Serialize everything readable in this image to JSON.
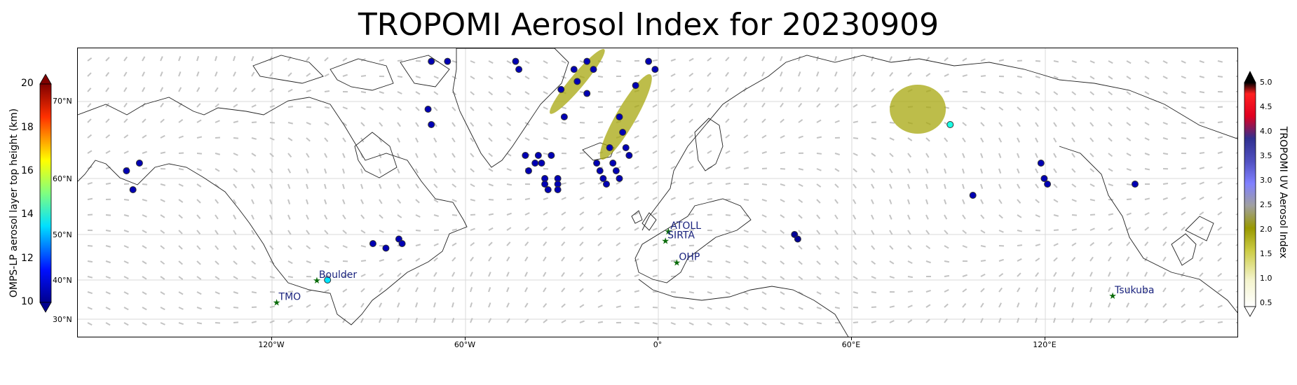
{
  "title": "TROPOMI Aerosol Index for 20230909",
  "left_colorbar": {
    "label": "OMPS-LP aerosol layer top height (km)",
    "ticks": [
      "20",
      "18",
      "16",
      "14",
      "12",
      "10"
    ],
    "range": [
      10,
      20
    ],
    "colormap": "jet"
  },
  "right_colorbar": {
    "label": "TROPOMI UV Aerosol Index",
    "ticks": [
      "5.0",
      "4.5",
      "4.0",
      "3.5",
      "3.0",
      "2.5",
      "2.0",
      "1.5",
      "1.0",
      "0.5"
    ],
    "range": [
      0.5,
      5.0
    ]
  },
  "lat_labels": [
    "70°N",
    "60°N",
    "50°N",
    "40°N",
    "30°N"
  ],
  "x_ticks": [
    "120°W",
    "60°W",
    "0°",
    "60°E",
    "120°E"
  ],
  "sites": [
    {
      "name": "ATOLL",
      "lon": 3.1,
      "lat": 50.6
    },
    {
      "name": "SIRTA",
      "lon": 2.2,
      "lat": 48.7
    },
    {
      "name": "OHP",
      "lon": 5.7,
      "lat": 43.9
    },
    {
      "name": "Boulder",
      "lon": -105.3,
      "lat": 40.0
    },
    {
      "name": "TMO",
      "lon": -117.7,
      "lat": 34.4
    },
    {
      "name": "Tsukuba",
      "lon": 140.1,
      "lat": 36.1
    }
  ],
  "omps_points": [
    {
      "lon": -164,
      "lat": 61,
      "h": 10.5
    },
    {
      "lon": -160,
      "lat": 62,
      "h": 10.5
    },
    {
      "lon": -162,
      "lat": 58,
      "h": 10.5
    },
    {
      "lon": -70,
      "lat": 80,
      "h": 10.5
    },
    {
      "lon": -65,
      "lat": 80,
      "h": 10.5
    },
    {
      "lon": -71,
      "lat": 69,
      "h": 10.5
    },
    {
      "lon": -70,
      "lat": 67,
      "h": 10.5
    },
    {
      "lon": -88,
      "lat": 48,
      "h": 10.5
    },
    {
      "lon": -84,
      "lat": 47,
      "h": 10.5
    },
    {
      "lon": -80,
      "lat": 49,
      "h": 10.5
    },
    {
      "lon": -79,
      "lat": 48,
      "h": 10.5
    },
    {
      "lon": -44,
      "lat": 80,
      "h": 10.5
    },
    {
      "lon": -43,
      "lat": 78,
      "h": 10.5
    },
    {
      "lon": -41,
      "lat": 63,
      "h": 10.5
    },
    {
      "lon": -40,
      "lat": 61,
      "h": 10.5
    },
    {
      "lon": -37,
      "lat": 63,
      "h": 10.5
    },
    {
      "lon": -38,
      "lat": 62,
      "h": 10.5
    },
    {
      "lon": -36,
      "lat": 62,
      "h": 10.5
    },
    {
      "lon": -35,
      "lat": 60,
      "h": 10.5
    },
    {
      "lon": -33,
      "lat": 63,
      "h": 10.5
    },
    {
      "lon": -35,
      "lat": 59,
      "h": 10.5
    },
    {
      "lon": -34,
      "lat": 58,
      "h": 10.5
    },
    {
      "lon": -31,
      "lat": 60,
      "h": 10.5
    },
    {
      "lon": -31,
      "lat": 59,
      "h": 10.5
    },
    {
      "lon": -31,
      "lat": 58,
      "h": 10.5
    },
    {
      "lon": -30,
      "lat": 73,
      "h": 10.5
    },
    {
      "lon": -29,
      "lat": 68,
      "h": 10.5
    },
    {
      "lon": -26,
      "lat": 78,
      "h": 10.5
    },
    {
      "lon": -25,
      "lat": 75,
      "h": 10.5
    },
    {
      "lon": -22,
      "lat": 72,
      "h": 10.5
    },
    {
      "lon": -22,
      "lat": 80,
      "h": 10.5
    },
    {
      "lon": -20,
      "lat": 78,
      "h": 10.5
    },
    {
      "lon": -19,
      "lat": 62,
      "h": 10.5
    },
    {
      "lon": -18,
      "lat": 61,
      "h": 10.5
    },
    {
      "lon": -17,
      "lat": 60,
      "h": 10.5
    },
    {
      "lon": -16,
      "lat": 59,
      "h": 10.5
    },
    {
      "lon": -15,
      "lat": 64,
      "h": 10.5
    },
    {
      "lon": -14,
      "lat": 62,
      "h": 10.5
    },
    {
      "lon": -13,
      "lat": 61,
      "h": 10.5
    },
    {
      "lon": -12,
      "lat": 60,
      "h": 10.5
    },
    {
      "lon": -12,
      "lat": 68,
      "h": 10.5
    },
    {
      "lon": -11,
      "lat": 66,
      "h": 10.5
    },
    {
      "lon": -10,
      "lat": 64,
      "h": 10.5
    },
    {
      "lon": -9,
      "lat": 63,
      "h": 10.5
    },
    {
      "lon": -7,
      "lat": 74,
      "h": 10.5
    },
    {
      "lon": -3,
      "lat": 80,
      "h": 10.5
    },
    {
      "lon": -1,
      "lat": 78,
      "h": 10.5
    },
    {
      "lon": 42,
      "lat": 50,
      "h": 10.2
    },
    {
      "lon": 43,
      "lat": 49,
      "h": 10.2
    },
    {
      "lon": 90,
      "lat": 67,
      "h": 14.0
    },
    {
      "lon": 97,
      "lat": 57,
      "h": 10.5
    },
    {
      "lon": 118,
      "lat": 62,
      "h": 10.5
    },
    {
      "lon": 119,
      "lat": 60,
      "h": 10.5
    },
    {
      "lon": 120,
      "lat": 59,
      "h": 10.5
    },
    {
      "lon": 147,
      "lat": 59,
      "h": 10.5
    },
    {
      "lon": -102,
      "lat": 40,
      "h": 13.5
    }
  ],
  "ai_plumes": [
    {
      "lon": 80,
      "lat": 69,
      "ai": 2.0
    },
    {
      "lon": -10,
      "lat": 68,
      "ai": 1.8
    },
    {
      "lon": -25,
      "lat": 75,
      "ai": 1.6
    }
  ]
}
